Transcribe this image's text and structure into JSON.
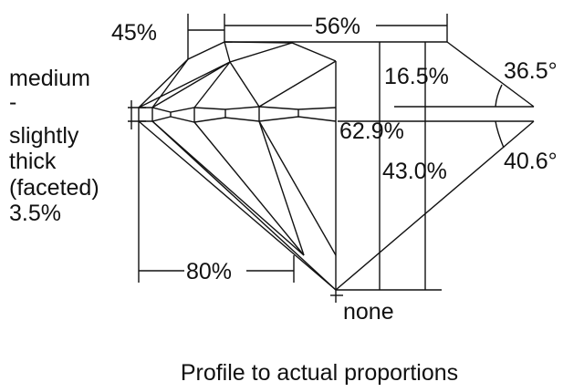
{
  "labels": {
    "crown_angle_pct": "45%",
    "table_pct": "56%",
    "girdle": [
      "medium",
      "-",
      "slightly",
      "thick",
      "(faceted)",
      "3.5%"
    ],
    "crown_height": "16.5%",
    "total_depth": "62.9%",
    "pavilion_depth": "43.0%",
    "crown_angle": "36.5°",
    "pavilion_angle": "40.6°",
    "lower_half": "80%",
    "culet": "none"
  },
  "caption": "Profile to actual proportions"
}
